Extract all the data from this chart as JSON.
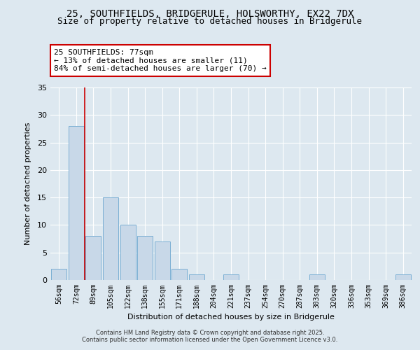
{
  "title_line1": "25, SOUTHFIELDS, BRIDGERULE, HOLSWORTHY, EX22 7DX",
  "title_line2": "Size of property relative to detached houses in Bridgerule",
  "xlabel": "Distribution of detached houses by size in Bridgerule",
  "ylabel": "Number of detached properties",
  "categories": [
    "56sqm",
    "72sqm",
    "89sqm",
    "105sqm",
    "122sqm",
    "138sqm",
    "155sqm",
    "171sqm",
    "188sqm",
    "204sqm",
    "221sqm",
    "237sqm",
    "254sqm",
    "270sqm",
    "287sqm",
    "303sqm",
    "320sqm",
    "336sqm",
    "353sqm",
    "369sqm",
    "386sqm"
  ],
  "values": [
    2,
    28,
    8,
    15,
    10,
    8,
    7,
    2,
    1,
    0,
    1,
    0,
    0,
    0,
    0,
    1,
    0,
    0,
    0,
    0,
    1
  ],
  "bar_color": "#c8d8e8",
  "bar_edge_color": "#7bafd4",
  "red_line_x": 1.5,
  "annotation_title": "25 SOUTHFIELDS: 77sqm",
  "annotation_line1": "← 13% of detached houses are smaller (11)",
  "annotation_line2": "84% of semi-detached houses are larger (70) →",
  "annotation_box_color": "#ffffff",
  "annotation_box_edge": "#cc0000",
  "ylim": [
    0,
    35
  ],
  "yticks": [
    0,
    5,
    10,
    15,
    20,
    25,
    30,
    35
  ],
  "bg_color": "#dde8f0",
  "plot_bg_color": "#dde8f0",
  "footer_line1": "Contains HM Land Registry data © Crown copyright and database right 2025.",
  "footer_line2": "Contains public sector information licensed under the Open Government Licence v3.0."
}
